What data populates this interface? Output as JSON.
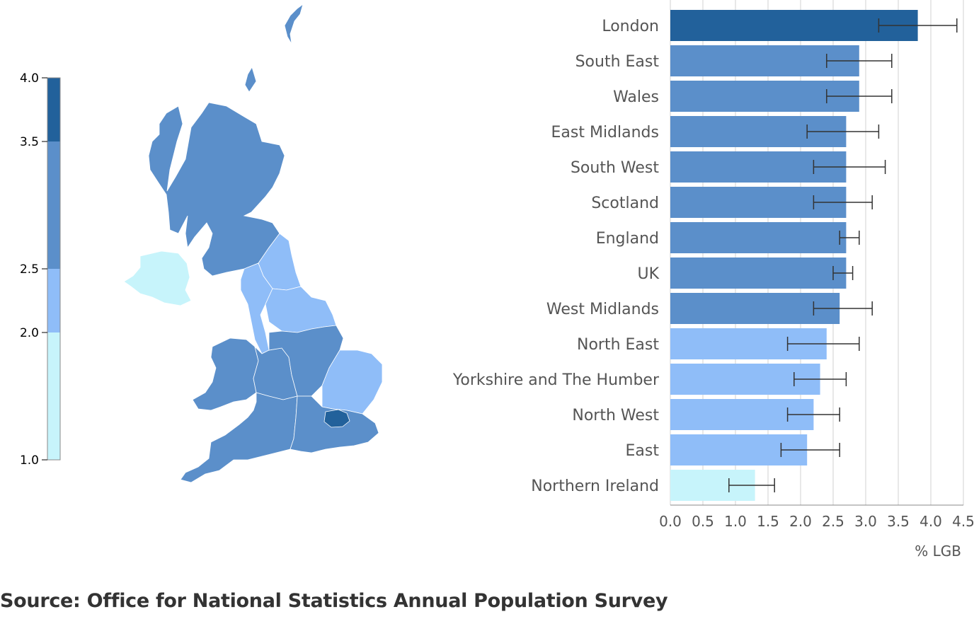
{
  "chart_data": [
    {
      "type": "map",
      "legend": {
        "ticks": [
          "4.0",
          "3.5",
          "2.5",
          "2.0",
          "1.0"
        ],
        "bins": [
          {
            "from": 3.5,
            "to": 4.0,
            "color": "#22619b"
          },
          {
            "from": 2.5,
            "to": 3.5,
            "color": "#5b8fca"
          },
          {
            "from": 2.0,
            "to": 2.5,
            "color": "#8fbdf8"
          },
          {
            "from": 1.0,
            "to": 2.0,
            "color": "#c7f4fb"
          }
        ]
      }
    },
    {
      "type": "bar",
      "orientation": "horizontal",
      "categories": [
        "London",
        "South East",
        "Wales",
        "East Midlands",
        "South West",
        "Scotland",
        "England",
        "UK",
        "West Midlands",
        "North East",
        "Yorkshire and The Humber",
        "North West",
        "East",
        "Northern Ireland"
      ],
      "values": [
        3.8,
        2.9,
        2.9,
        2.7,
        2.7,
        2.7,
        2.7,
        2.7,
        2.6,
        2.4,
        2.3,
        2.2,
        2.1,
        1.3
      ],
      "error_low": [
        3.2,
        2.4,
        2.4,
        2.1,
        2.2,
        2.2,
        2.6,
        2.5,
        2.2,
        1.8,
        1.9,
        1.8,
        1.7,
        0.9
      ],
      "error_high": [
        4.4,
        3.4,
        3.4,
        3.2,
        3.3,
        3.1,
        2.9,
        2.8,
        3.1,
        2.9,
        2.7,
        2.6,
        2.6,
        1.6
      ],
      "colors": [
        "#22619b",
        "#5b8fca",
        "#5b8fca",
        "#5b8fca",
        "#5b8fca",
        "#5b8fca",
        "#5b8fca",
        "#5b8fca",
        "#5b8fca",
        "#8fbdf8",
        "#8fbdf8",
        "#8fbdf8",
        "#8fbdf8",
        "#c7f4fb"
      ],
      "xticks": [
        "0.0",
        "0.5",
        "1.0",
        "1.5",
        "2.0",
        "2.5",
        "3.0",
        "3.5",
        "4.0",
        "4.5"
      ],
      "xlim": [
        0,
        4.5
      ],
      "xlabel": "% LGB",
      "grid": true
    }
  ],
  "source": "Source: Office for National Statistics Annual Population Survey",
  "colors": {
    "dark": "#22619b",
    "medium": "#5b8fca",
    "light": "#8fbdf8",
    "pale": "#c7f4fb",
    "error_bar": "#333333",
    "grid": "#d0d0d0"
  }
}
